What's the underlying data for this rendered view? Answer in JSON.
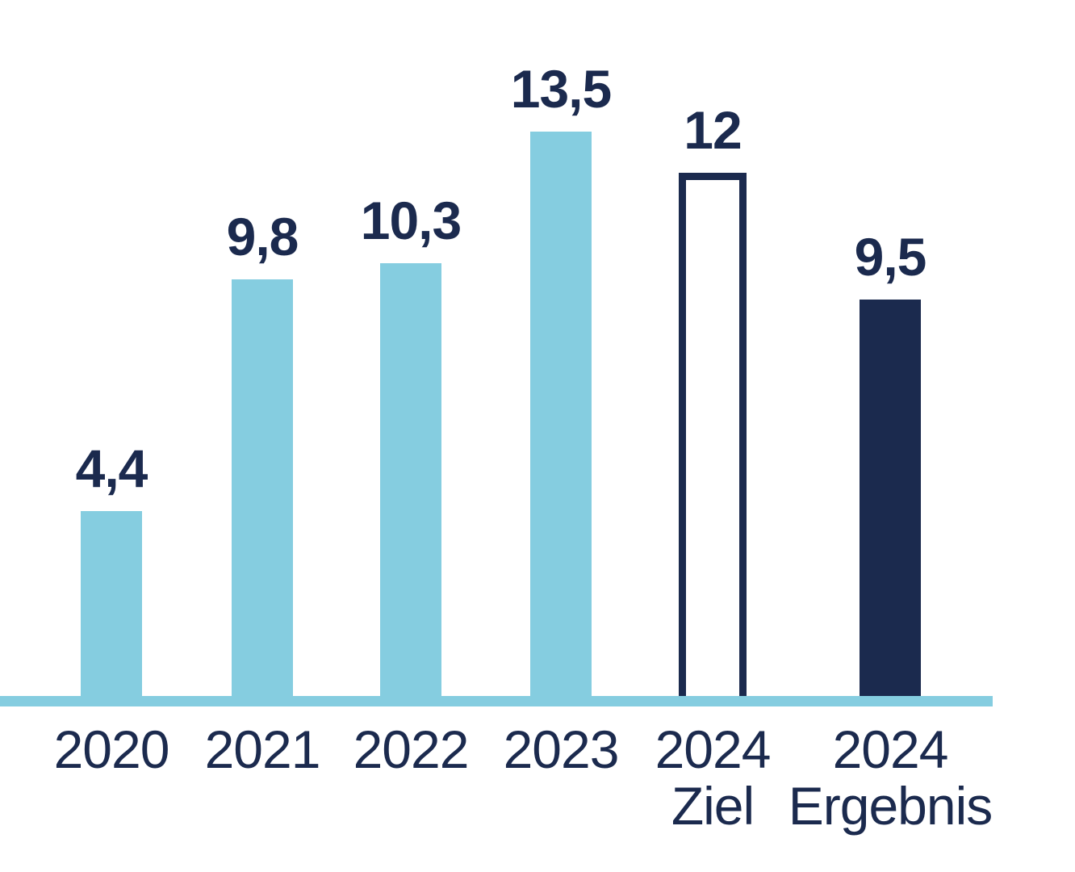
{
  "chart_data": {
    "type": "bar",
    "title": "",
    "xlabel": "",
    "ylabel": "",
    "ylim": [
      0,
      14
    ],
    "grid": false,
    "legend": false,
    "categories": [
      "2020",
      "2021",
      "2022",
      "2023",
      "2024 Ziel",
      "2024 Ergebnis"
    ],
    "values": [
      4.4,
      9.8,
      10.3,
      13.5,
      12,
      9.5
    ],
    "bars": [
      {
        "category_line1": "2020",
        "category_line2": "",
        "value": 4.4,
        "value_label": "4,4",
        "style": "light"
      },
      {
        "category_line1": "2021",
        "category_line2": "",
        "value": 9.8,
        "value_label": "9,8",
        "style": "light"
      },
      {
        "category_line1": "2022",
        "category_line2": "",
        "value": 10.3,
        "value_label": "10,3",
        "style": "light"
      },
      {
        "category_line1": "2023",
        "category_line2": "",
        "value": 13.5,
        "value_label": "13,5",
        "style": "light"
      },
      {
        "category_line1": "2024",
        "category_line2": "Ziel",
        "value": 12,
        "value_label": "12",
        "style": "outline"
      },
      {
        "category_line1": "2024",
        "category_line2": "Ergebnis",
        "value": 9.5,
        "value_label": "9,5",
        "style": "dark"
      }
    ],
    "colors": {
      "bar_light": "#85CDE0",
      "bar_dark": "#1B2A4E",
      "outline_border": "#1B2A4E",
      "outline_fill": "#FFFFFF",
      "label_text": "#1B2A4E",
      "baseline": "#85CDE0",
      "background": "#FFFFFF"
    }
  }
}
